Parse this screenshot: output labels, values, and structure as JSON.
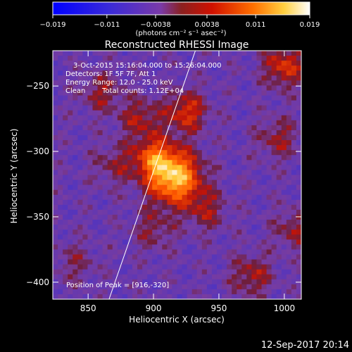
{
  "colorbar": {
    "tick_labels": [
      "−0.019",
      "−0.011",
      "−0.0038",
      "0.0038",
      "0.011",
      "0.019"
    ],
    "tick_values": [
      -0.019,
      -0.011,
      -0.0038,
      0.0038,
      0.011,
      0.019
    ],
    "range": [
      -0.019,
      0.019
    ],
    "units_label": "(photons cm⁻² s⁻¹ asec⁻²)"
  },
  "chart_data": {
    "type": "heatmap",
    "title": "Reconstructed RHESSI Image",
    "xlabel": "Heliocentric X (arcsec)",
    "ylabel": "Heliocentric Y (arcsec)",
    "xlim": [
      823,
      1013
    ],
    "ylim": [
      -413,
      -223
    ],
    "x_ticks": [
      850,
      900,
      950,
      1000
    ],
    "x_tick_labels": [
      "850",
      "900",
      "950",
      "1000"
    ],
    "y_ticks": [
      -400,
      -350,
      -300,
      -250
    ],
    "y_tick_labels": [
      "−400",
      "−350",
      "−300",
      "−250"
    ],
    "peak": [
      916,
      -320
    ],
    "limb_line": [
      [
        866,
        -413
      ],
      [
        932,
        -223
      ]
    ],
    "emission_sources": [
      {
        "x": 916,
        "y": -320,
        "strength": 1.0
      },
      {
        "x": 900,
        "y": -305,
        "strength": 0.55
      },
      {
        "x": 925,
        "y": -270,
        "strength": 0.5
      },
      {
        "x": 890,
        "y": -275,
        "strength": 0.35
      },
      {
        "x": 870,
        "y": -310,
        "strength": 0.25
      },
      {
        "x": 1000,
        "y": -235,
        "strength": 0.5
      },
      {
        "x": 995,
        "y": -290,
        "strength": 0.3
      },
      {
        "x": 940,
        "y": -345,
        "strength": 0.3
      },
      {
        "x": 900,
        "y": -360,
        "strength": 0.25
      },
      {
        "x": 860,
        "y": -255,
        "strength": 0.3
      },
      {
        "x": 975,
        "y": -395,
        "strength": 0.35
      },
      {
        "x": 1008,
        "y": -360,
        "strength": 0.3
      },
      {
        "x": 840,
        "y": -385,
        "strength": 0.2
      }
    ],
    "annotations": [
      "3-Oct-2015 15:16:04.000 to 15:26:04.000",
      "Detectors: 1F 5F 7F, Att 1",
      "Energy Range: 12.0 - 25.0 keV",
      "Clean",
      "Total counts: 1.12E+04",
      "Position of Peak = [916,-320]"
    ]
  },
  "footer": {
    "date": "12-Sep-2017 20:14"
  },
  "colors": {
    "background": "#000000",
    "text": "#ffffff"
  }
}
